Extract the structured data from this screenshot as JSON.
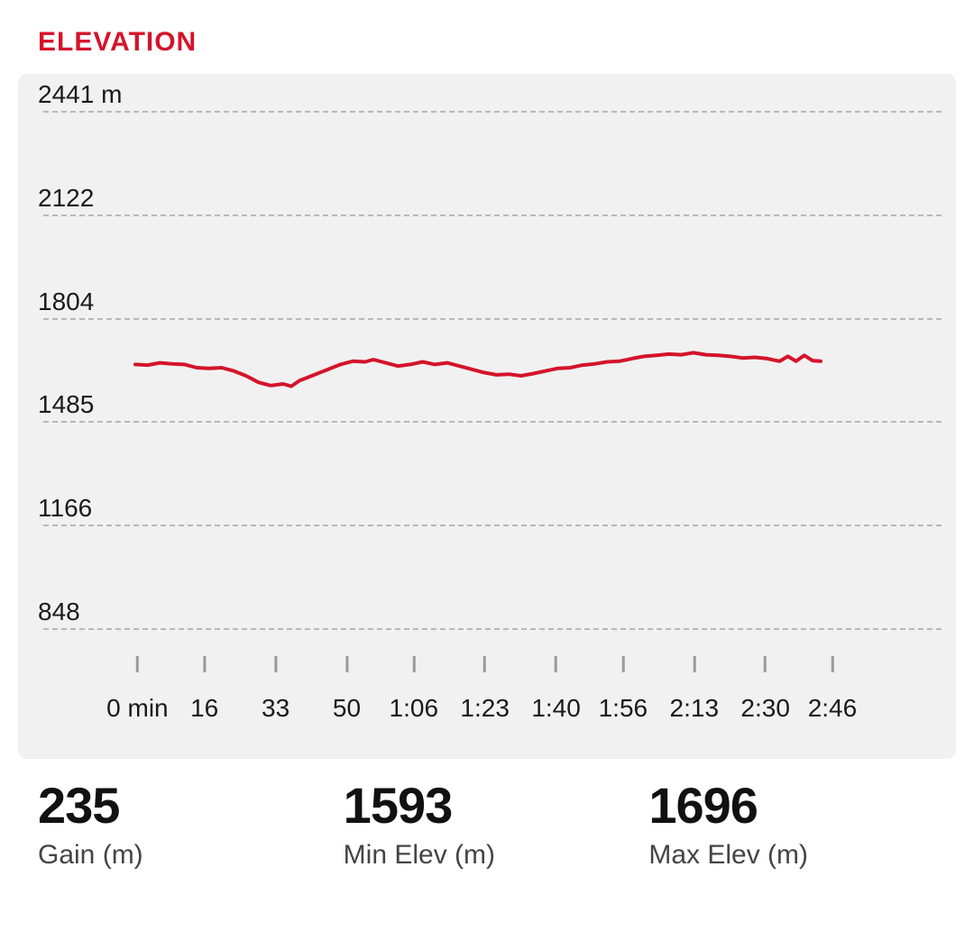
{
  "section": {
    "title": "ELEVATION",
    "title_color": "#d4142a"
  },
  "chart": {
    "type": "line",
    "background_color": "#f1f1f1",
    "grid_color": "#b8b8b8",
    "tick_color": "#9a9a9a",
    "line_color": "#d4142a",
    "line_width": 4,
    "ylim": [
      848,
      2441
    ],
    "yticks": [
      {
        "value": 2441,
        "label": "2441 m"
      },
      {
        "value": 2122,
        "label": "2122"
      },
      {
        "value": 1804,
        "label": "1804"
      },
      {
        "value": 1485,
        "label": "1485"
      },
      {
        "value": 1166,
        "label": "1166"
      },
      {
        "value": 848,
        "label": "848"
      }
    ],
    "x_range": [
      0,
      167
    ],
    "x_plot_start": 12,
    "x_plot_end": 88,
    "xticks": [
      {
        "value": 0,
        "label": "0 min"
      },
      {
        "value": 16,
        "label": "16"
      },
      {
        "value": 33,
        "label": "33"
      },
      {
        "value": 50,
        "label": "50"
      },
      {
        "value": 66,
        "label": "1:06"
      },
      {
        "value": 83,
        "label": "1:23"
      },
      {
        "value": 100,
        "label": "1:40"
      },
      {
        "value": 116,
        "label": "1:56"
      },
      {
        "value": 133,
        "label": "2:13"
      },
      {
        "value": 150,
        "label": "2:30"
      },
      {
        "value": 166,
        "label": "2:46"
      }
    ],
    "series": [
      {
        "x": 0,
        "y": 1660
      },
      {
        "x": 3,
        "y": 1658
      },
      {
        "x": 6,
        "y": 1665
      },
      {
        "x": 9,
        "y": 1662
      },
      {
        "x": 12,
        "y": 1660
      },
      {
        "x": 15,
        "y": 1650
      },
      {
        "x": 18,
        "y": 1648
      },
      {
        "x": 21,
        "y": 1650
      },
      {
        "x": 24,
        "y": 1640
      },
      {
        "x": 27,
        "y": 1625
      },
      {
        "x": 30,
        "y": 1605
      },
      {
        "x": 33,
        "y": 1595
      },
      {
        "x": 36,
        "y": 1600
      },
      {
        "x": 38,
        "y": 1593
      },
      {
        "x": 40,
        "y": 1610
      },
      {
        "x": 43,
        "y": 1625
      },
      {
        "x": 46,
        "y": 1640
      },
      {
        "x": 50,
        "y": 1660
      },
      {
        "x": 53,
        "y": 1670
      },
      {
        "x": 56,
        "y": 1668
      },
      {
        "x": 58,
        "y": 1675
      },
      {
        "x": 61,
        "y": 1665
      },
      {
        "x": 64,
        "y": 1655
      },
      {
        "x": 67,
        "y": 1660
      },
      {
        "x": 70,
        "y": 1668
      },
      {
        "x": 73,
        "y": 1660
      },
      {
        "x": 76,
        "y": 1665
      },
      {
        "x": 79,
        "y": 1655
      },
      {
        "x": 82,
        "y": 1645
      },
      {
        "x": 85,
        "y": 1635
      },
      {
        "x": 88,
        "y": 1628
      },
      {
        "x": 91,
        "y": 1630
      },
      {
        "x": 94,
        "y": 1625
      },
      {
        "x": 97,
        "y": 1632
      },
      {
        "x": 100,
        "y": 1640
      },
      {
        "x": 103,
        "y": 1648
      },
      {
        "x": 106,
        "y": 1650
      },
      {
        "x": 109,
        "y": 1658
      },
      {
        "x": 112,
        "y": 1662
      },
      {
        "x": 115,
        "y": 1668
      },
      {
        "x": 118,
        "y": 1670
      },
      {
        "x": 121,
        "y": 1678
      },
      {
        "x": 124,
        "y": 1685
      },
      {
        "x": 127,
        "y": 1688
      },
      {
        "x": 130,
        "y": 1692
      },
      {
        "x": 133,
        "y": 1690
      },
      {
        "x": 136,
        "y": 1696
      },
      {
        "x": 139,
        "y": 1690
      },
      {
        "x": 142,
        "y": 1688
      },
      {
        "x": 145,
        "y": 1685
      },
      {
        "x": 148,
        "y": 1680
      },
      {
        "x": 151,
        "y": 1682
      },
      {
        "x": 154,
        "y": 1678
      },
      {
        "x": 157,
        "y": 1670
      },
      {
        "x": 159,
        "y": 1685
      },
      {
        "x": 161,
        "y": 1670
      },
      {
        "x": 163,
        "y": 1688
      },
      {
        "x": 165,
        "y": 1672
      },
      {
        "x": 167,
        "y": 1670
      }
    ]
  },
  "stats": [
    {
      "value": "235",
      "label": "Gain (m)"
    },
    {
      "value": "1593",
      "label": "Min Elev (m)"
    },
    {
      "value": "1696",
      "label": "Max Elev (m)"
    }
  ]
}
